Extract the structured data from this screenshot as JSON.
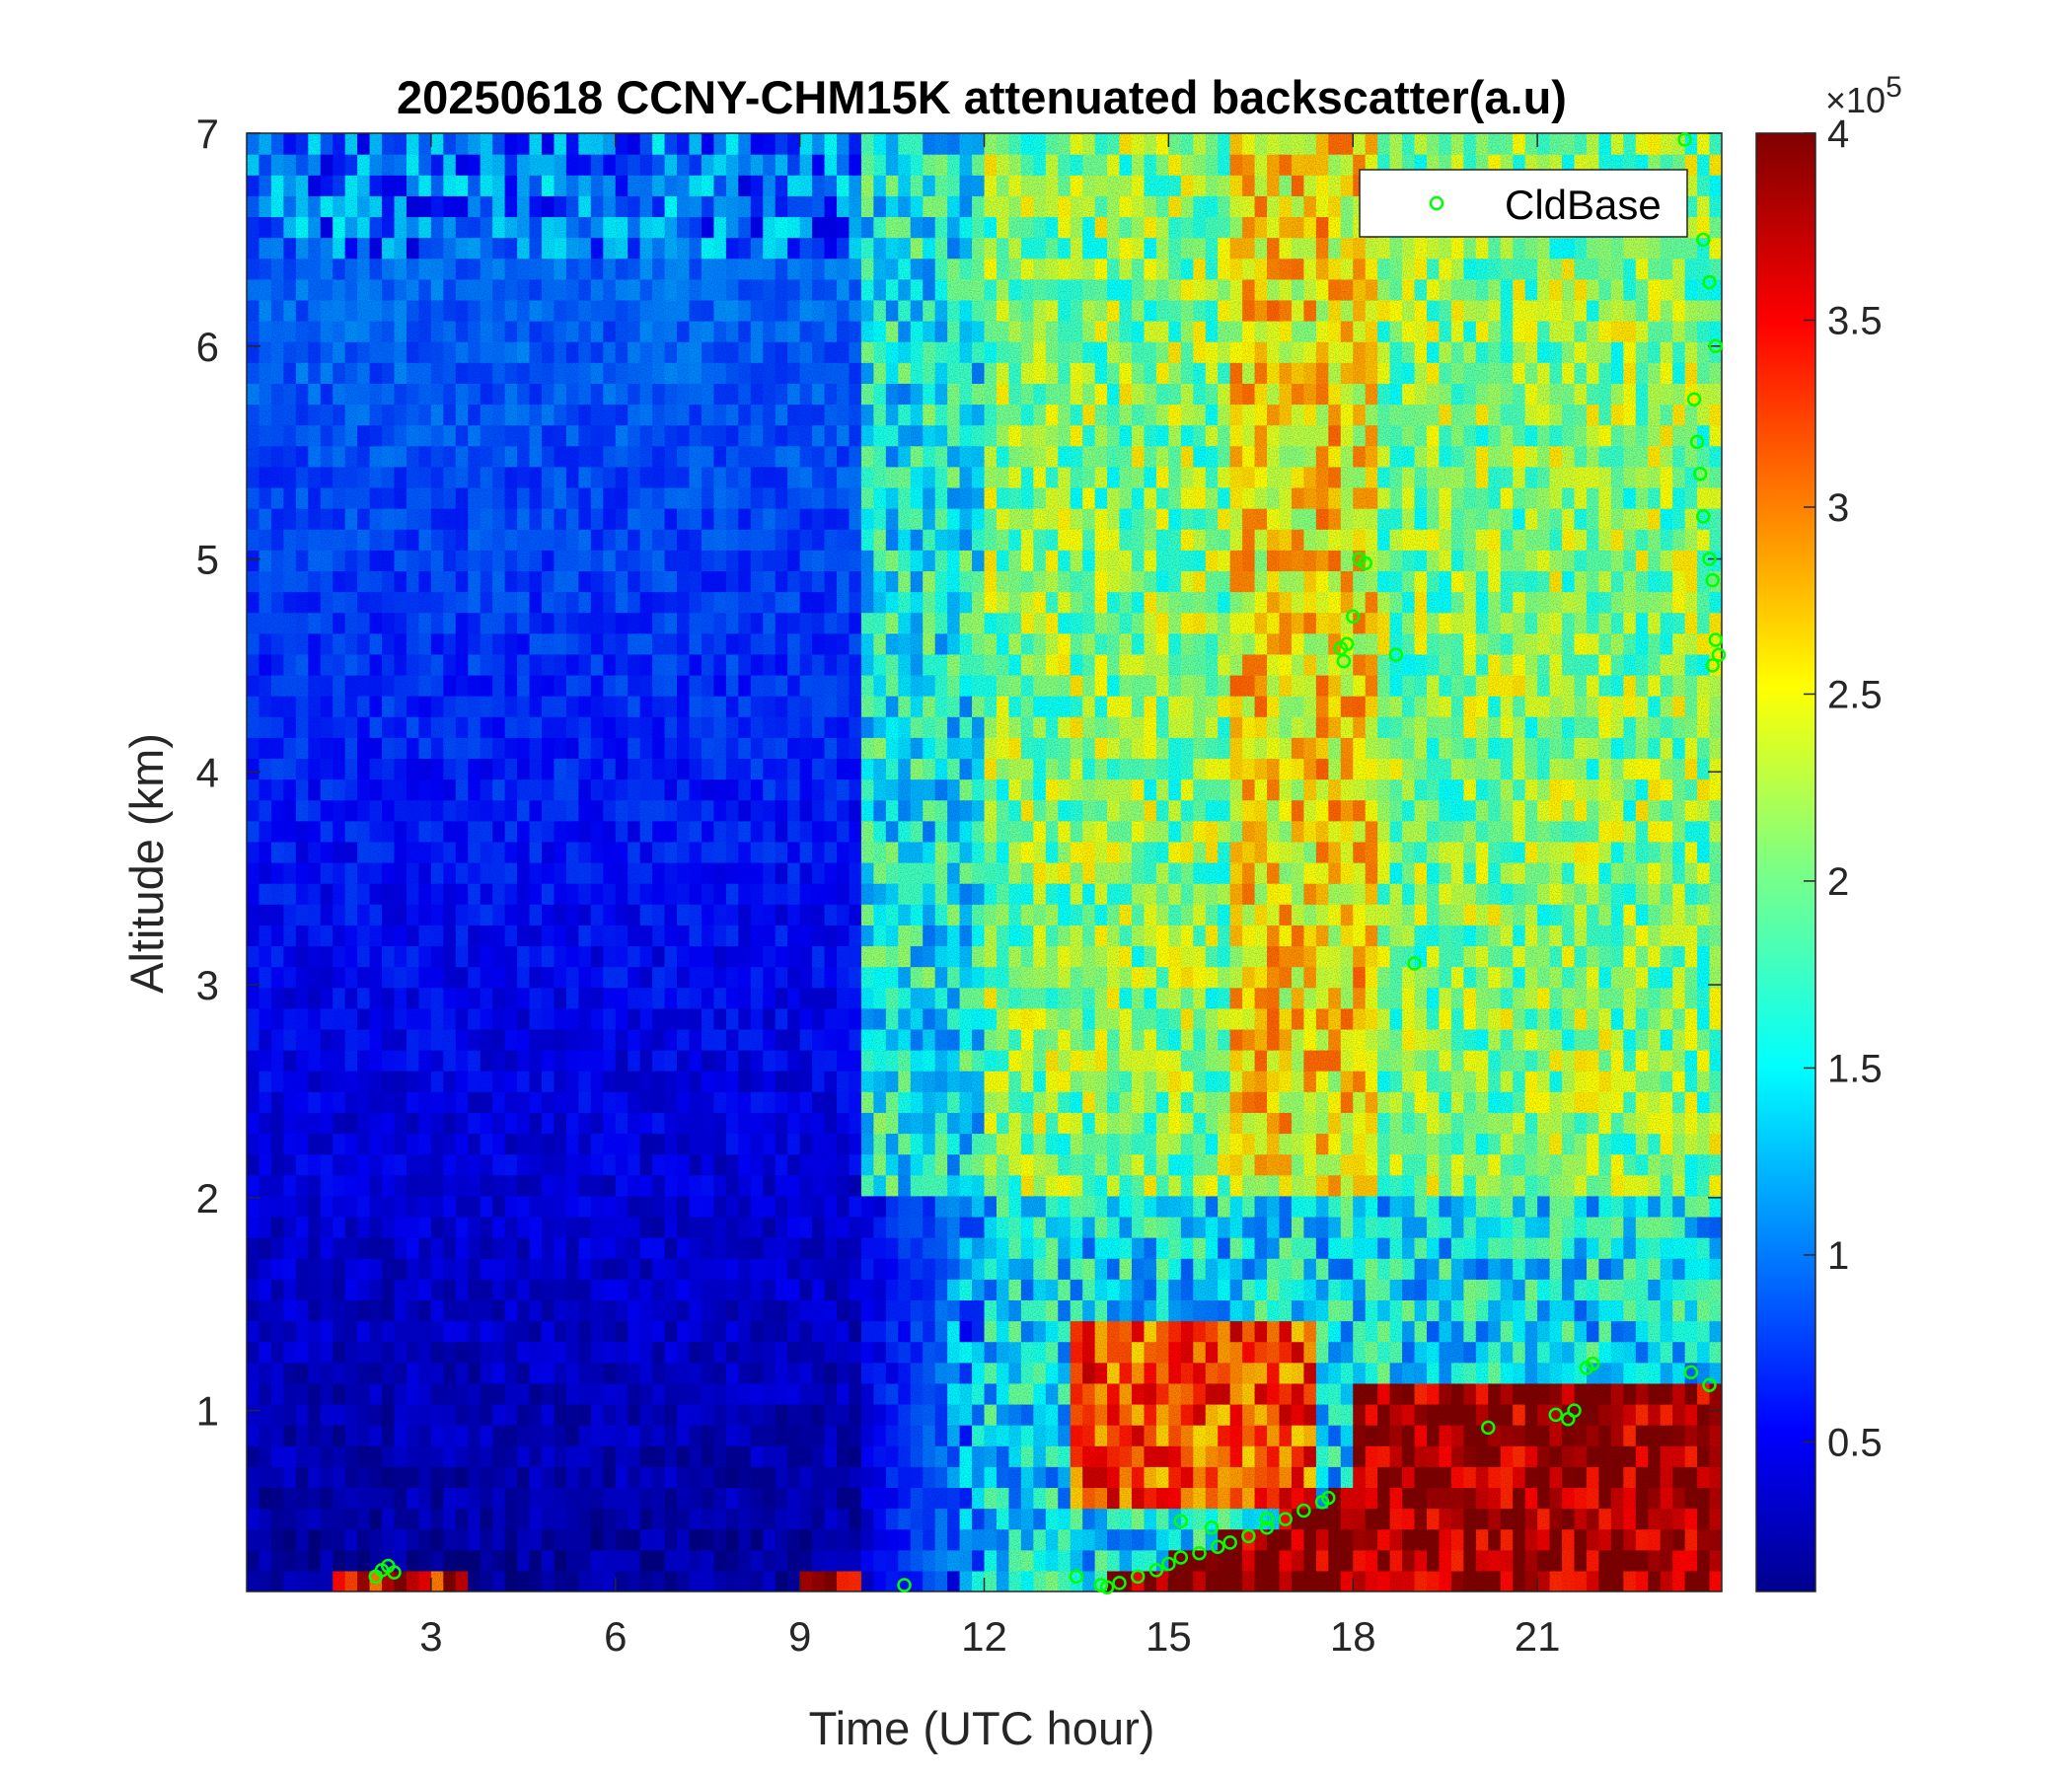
{
  "chart_data": {
    "type": "heatmap",
    "title": "20250618 CCNY-CHM15K attenuated backscatter(a.u)",
    "xlabel": "Time (UTC hour)",
    "ylabel": "Altitude (km)",
    "xlim": [
      0,
      24
    ],
    "ylim": [
      0.15,
      7
    ],
    "xticks": [
      3,
      6,
      9,
      12,
      15,
      18,
      21
    ],
    "yticks": [
      1,
      2,
      3,
      4,
      5,
      6,
      7
    ],
    "colorbar": {
      "range": [
        0.1,
        4
      ],
      "ticks": [
        0.5,
        1,
        1.5,
        2,
        2.5,
        3,
        3.5,
        4
      ],
      "exponent_label": "×10",
      "exponent": "5",
      "colormap": "jet"
    },
    "legend": {
      "entries": [
        "CldBase"
      ],
      "position": "top-right",
      "marker": "open-circle",
      "color": "#00ff00"
    },
    "grid": false,
    "regions": [
      {
        "name": "clear-night-low-signal",
        "x": [
          0,
          10
        ],
        "y": [
          0.15,
          7
        ],
        "level": 0.3
      },
      {
        "name": "daytime-noise",
        "x": [
          10,
          24
        ],
        "y": [
          2,
          7
        ],
        "level": 1.6
      },
      {
        "name": "aerosol-layer-15-18h",
        "x": [
          13.5,
          17.5
        ],
        "y": [
          0.5,
          1.4
        ],
        "level": 3.2
      },
      {
        "name": "boundary-layer-18-24h",
        "x": [
          18,
          24
        ],
        "y": [
          0.15,
          1.1
        ],
        "level": 3.9
      }
    ],
    "series": [
      {
        "name": "CldBase",
        "x": [
          2.1,
          2.2,
          2.3,
          2.4,
          10.7,
          13.5,
          13.9,
          14.0,
          14.2,
          14.5,
          14.8,
          15.0,
          15.2,
          15.5,
          15.8,
          16.0,
          16.3,
          16.6,
          16.9,
          17.2,
          17.5,
          17.6,
          15.2,
          15.7,
          16.6,
          17.8,
          17.85,
          17.9,
          18.0,
          18.1,
          18.2,
          18.7,
          19.0,
          20.2,
          21.3,
          21.5,
          21.6,
          21.8,
          21.9,
          23.4,
          23.7,
          23.8,
          23.9,
          23.55,
          23.6,
          23.65,
          23.7,
          23.8,
          23.85,
          23.9,
          23.95,
          23.85,
          23.8,
          23.5
        ],
        "y": [
          0.22,
          0.25,
          0.27,
          0.24,
          0.18,
          0.22,
          0.18,
          0.17,
          0.19,
          0.22,
          0.25,
          0.28,
          0.31,
          0.33,
          0.36,
          0.38,
          0.41,
          0.45,
          0.49,
          0.53,
          0.57,
          0.59,
          0.48,
          0.45,
          0.49,
          4.58,
          4.52,
          4.6,
          4.73,
          5.0,
          4.98,
          4.55,
          3.1,
          0.92,
          0.98,
          0.96,
          1.0,
          1.2,
          1.22,
          6.97,
          6.5,
          6.3,
          6.0,
          5.75,
          5.55,
          5.4,
          5.2,
          5.0,
          4.9,
          4.62,
          4.55,
          4.5,
          1.12,
          1.18
        ]
      }
    ]
  }
}
